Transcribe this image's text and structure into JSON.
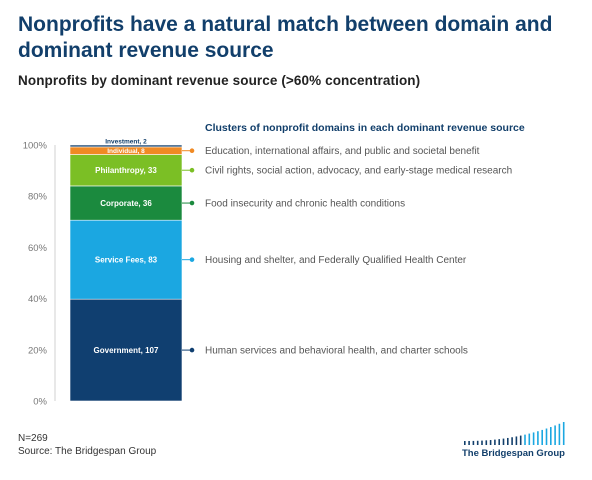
{
  "title": "Nonprofits have a natural match between domain and dominant revenue source",
  "subtitle": "Nonprofits by dominant revenue source (>60% concentration)",
  "footer": {
    "n": "N=269",
    "source": "Source: The Bridgespan Group",
    "logo_text": "The Bridgespan Group"
  },
  "annotations_header": "Clusters of nonprofit domains in each dominant revenue source",
  "colors": {
    "title": "#123f6b",
    "Government": "#103f70",
    "Service Fees": "#1ba7e1",
    "Corporate": "#1b8a3e",
    "Philanthropy": "#7bbf25",
    "Individual": "#f08a24",
    "Investment": "#123f6b"
  },
  "chart_data": {
    "type": "bar",
    "stacked": true,
    "ylim": [
      0,
      100
    ],
    "yticks": [
      "0%",
      "20%",
      "40%",
      "60%",
      "80%",
      "100%"
    ],
    "total": 269,
    "series": [
      {
        "name": "Government",
        "value": 107,
        "label": "Government, 107",
        "annotation": "Human services and behavioral health, and charter schools"
      },
      {
        "name": "Service Fees",
        "value": 83,
        "label": "Service Fees, 83",
        "annotation": "Housing and shelter, and Federally Qualified Health Center"
      },
      {
        "name": "Corporate",
        "value": 36,
        "label": "Corporate, 36",
        "annotation": "Food insecurity and chronic health conditions"
      },
      {
        "name": "Philanthropy",
        "value": 33,
        "label": "Philanthropy, 33",
        "annotation": "Civil rights, social action, advocacy, and early-stage medical research"
      },
      {
        "name": "Individual",
        "value": 8,
        "label": "Individual, 8",
        "annotation": "Education, international affairs, and public and societal benefit"
      },
      {
        "name": "Investment",
        "value": 2,
        "label": "Investment, 2",
        "annotation": ""
      }
    ]
  }
}
